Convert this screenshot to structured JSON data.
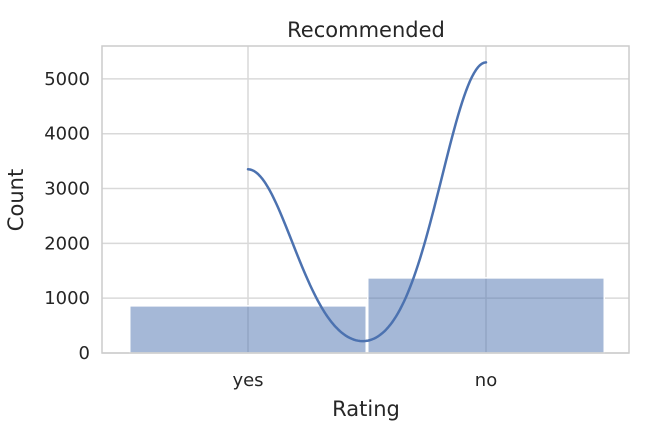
{
  "chart_data": {
    "type": "bar",
    "title": "Recommended",
    "xlabel": "Rating",
    "ylabel": "Count",
    "categories": [
      "yes",
      "no"
    ],
    "values": [
      860,
      1370
    ],
    "ylim": [
      0,
      5600
    ],
    "yticks": [
      0,
      1000,
      2000,
      3000,
      4000,
      5000
    ],
    "ytick_labels": [
      "0",
      "1000",
      "2000",
      "3000",
      "4000",
      "5000"
    ],
    "grid": true,
    "bar_color": "#4c72b0",
    "kde": {
      "name": "",
      "peak_values": [
        3350,
        5300
      ]
    }
  }
}
